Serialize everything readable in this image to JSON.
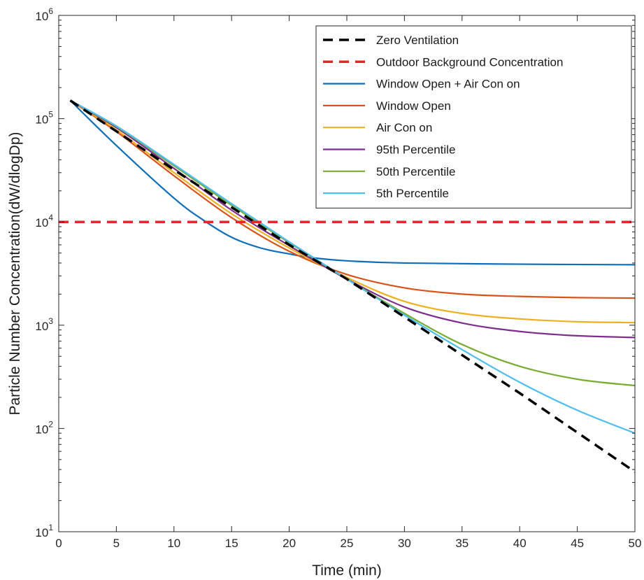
{
  "chart_data": {
    "type": "line",
    "title": "",
    "xlabel": "Time (min)",
    "ylabel": "Particle Number Concentration(dW/dlogDp)",
    "xlim": [
      0,
      50
    ],
    "ylim": [
      10,
      1000000
    ],
    "yscale": "log",
    "grid": false,
    "legend_position": "top-right",
    "x_ticks": [
      0,
      5,
      10,
      15,
      20,
      25,
      30,
      35,
      40,
      45,
      50
    ],
    "y_ticks": [
      {
        "value": 10,
        "base": "10",
        "exp": "1"
      },
      {
        "value": 100,
        "base": "10",
        "exp": "2"
      },
      {
        "value": 1000,
        "base": "10",
        "exp": "3"
      },
      {
        "value": 10000,
        "base": "10",
        "exp": "4"
      },
      {
        "value": 100000,
        "base": "10",
        "exp": "5"
      },
      {
        "value": 1000000,
        "base": "10",
        "exp": "6"
      }
    ],
    "series": [
      {
        "name": "Zero Ventilation",
        "color": "#000000",
        "dash": true,
        "x": [
          1,
          10,
          20,
          25,
          30,
          40,
          50
        ],
        "y": [
          150000,
          32000,
          6000,
          2800,
          1200,
          220,
          38
        ]
      },
      {
        "name": "Outdoor Background Concentration",
        "color": "#e8262a",
        "dash": true,
        "x": [
          0,
          50
        ],
        "y": [
          10000,
          10000
        ]
      },
      {
        "name": "Window Open + Air Con on",
        "color": "#0e6eb8",
        "x": [
          1,
          5,
          10,
          12.5,
          15,
          17.5,
          20,
          22,
          25,
          30,
          40,
          50
        ],
        "y": [
          150000,
          55000,
          17000,
          10500,
          7100,
          5600,
          4900,
          4500,
          4200,
          4000,
          3900,
          3850
        ]
      },
      {
        "name": "Window Open",
        "color": "#d95319",
        "x": [
          1,
          5,
          10,
          15,
          20,
          25,
          30,
          35,
          40,
          45,
          50
        ],
        "y": [
          150000,
          75000,
          28000,
          11000,
          5200,
          3100,
          2300,
          2000,
          1900,
          1850,
          1830
        ]
      },
      {
        "name": "Air Con on",
        "color": "#edb120",
        "x": [
          1,
          5,
          10,
          15,
          20,
          25,
          30,
          35,
          40,
          45,
          50
        ],
        "y": [
          150000,
          78000,
          30000,
          12000,
          5600,
          2900,
          1700,
          1300,
          1150,
          1080,
          1060
        ]
      },
      {
        "name": "95th Percentile",
        "color": "#7e2f8e",
        "x": [
          1,
          5,
          10,
          15,
          20,
          25,
          30,
          35,
          40,
          45,
          50
        ],
        "y": [
          150000,
          82000,
          33000,
          13000,
          5900,
          2800,
          1500,
          1050,
          870,
          790,
          760
        ]
      },
      {
        "name": "50th Percentile",
        "color": "#77ac30",
        "x": [
          1,
          5,
          10,
          15,
          20,
          25,
          30,
          35,
          40,
          45,
          50
        ],
        "y": [
          150000,
          84000,
          35000,
          14500,
          6300,
          2800,
          1300,
          650,
          400,
          300,
          260
        ]
      },
      {
        "name": "5th Percentile",
        "color": "#4dbeee",
        "x": [
          1,
          5,
          10,
          15,
          20,
          25,
          30,
          35,
          40,
          45,
          50
        ],
        "y": [
          150000,
          85000,
          36000,
          15000,
          6400,
          2800,
          1250,
          580,
          280,
          150,
          90
        ]
      }
    ]
  }
}
